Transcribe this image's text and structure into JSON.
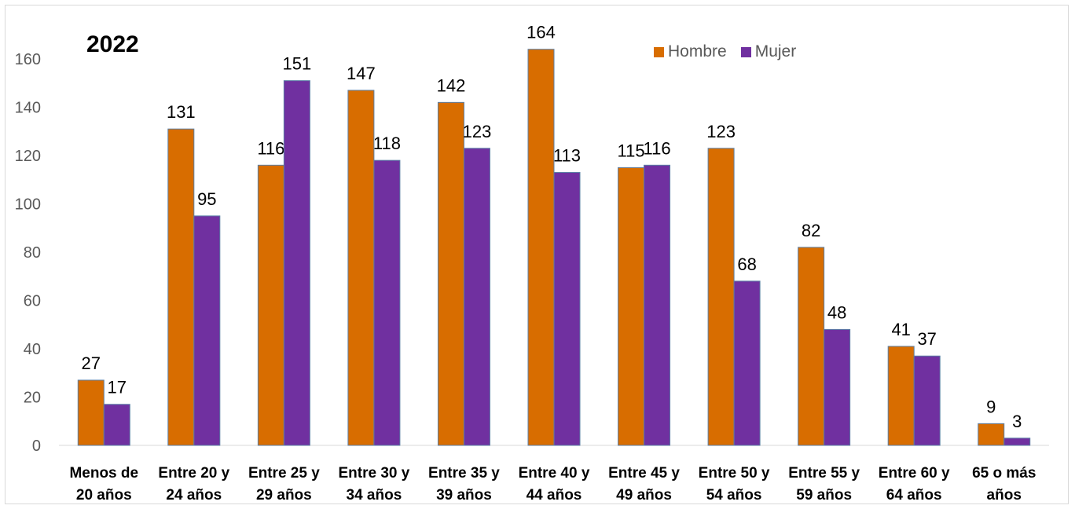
{
  "chart_data": {
    "type": "bar",
    "title": "2022",
    "categories": [
      [
        "Menos de",
        "20 años"
      ],
      [
        "Entre 20 y",
        "24 años"
      ],
      [
        "Entre 25 y",
        "29 años"
      ],
      [
        "Entre 30 y",
        "34 años"
      ],
      [
        "Entre 35 y",
        "39 años"
      ],
      [
        "Entre 40 y",
        "44 años"
      ],
      [
        "Entre 45 y",
        "49 años"
      ],
      [
        "Entre 50 y",
        "54 años"
      ],
      [
        "Entre 55 y",
        "59 años"
      ],
      [
        "Entre 60 y",
        "64 años"
      ],
      [
        "65 o más",
        "años"
      ]
    ],
    "series": [
      {
        "name": "Hombre",
        "color": "#D86D00",
        "values": [
          27,
          131,
          116,
          147,
          142,
          164,
          115,
          123,
          82,
          41,
          9
        ]
      },
      {
        "name": "Mujer",
        "color": "#7030A0",
        "values": [
          17,
          95,
          151,
          118,
          123,
          113,
          116,
          68,
          48,
          37,
          3
        ]
      }
    ],
    "ylim": [
      0,
      160
    ],
    "yticks": [
      0,
      20,
      40,
      60,
      80,
      100,
      120,
      140,
      160
    ],
    "grid": false,
    "legend": "top-right"
  }
}
